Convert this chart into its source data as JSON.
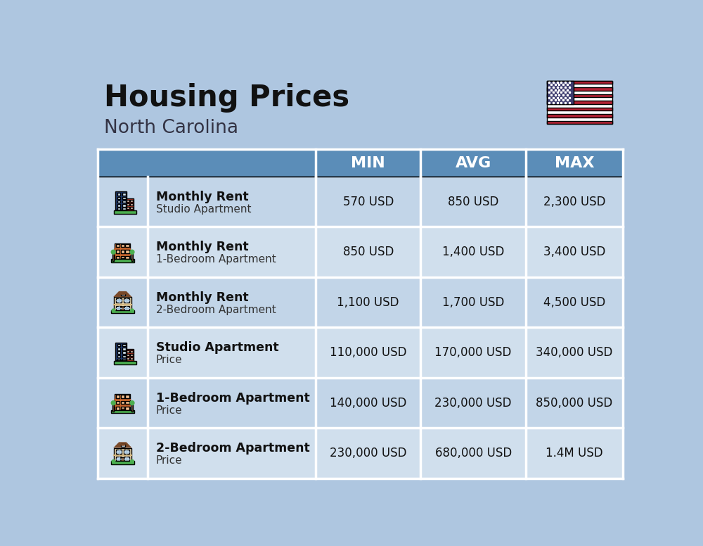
{
  "title": "Housing Prices",
  "subtitle": "North Carolina",
  "background_color": "#aec6e0",
  "header_color": "#5b8db8",
  "header_text_color": "#ffffff",
  "row_bg_odd": "#c2d5e8",
  "row_bg_even": "#d0dfed",
  "divider_color": "#ffffff",
  "title_color": "#111111",
  "subtitle_color": "#333344",
  "col_headers": [
    "MIN",
    "AVG",
    "MAX"
  ],
  "rows": [
    {
      "label_bold": "Monthly Rent",
      "label_light": "Studio Apartment",
      "min": "570 USD",
      "avg": "850 USD",
      "max": "2,300 USD",
      "icon_type": "blue_red_office"
    },
    {
      "label_bold": "Monthly Rent",
      "label_light": "1-Bedroom Apartment",
      "min": "850 USD",
      "avg": "1,400 USD",
      "max": "3,400 USD",
      "icon_type": "orange_apartment"
    },
    {
      "label_bold": "Monthly Rent",
      "label_light": "2-Bedroom Apartment",
      "min": "1,100 USD",
      "avg": "1,700 USD",
      "max": "4,500 USD",
      "icon_type": "beige_house"
    },
    {
      "label_bold": "Studio Apartment",
      "label_light": "Price",
      "min": "110,000 USD",
      "avg": "170,000 USD",
      "max": "340,000 USD",
      "icon_type": "blue_red_office"
    },
    {
      "label_bold": "1-Bedroom Apartment",
      "label_light": "Price",
      "min": "140,000 USD",
      "avg": "230,000 USD",
      "max": "850,000 USD",
      "icon_type": "orange_apartment"
    },
    {
      "label_bold": "2-Bedroom Apartment",
      "label_light": "Price",
      "min": "230,000 USD",
      "avg": "680,000 USD",
      "max": "1.4M USD",
      "icon_type": "beige_house"
    }
  ]
}
